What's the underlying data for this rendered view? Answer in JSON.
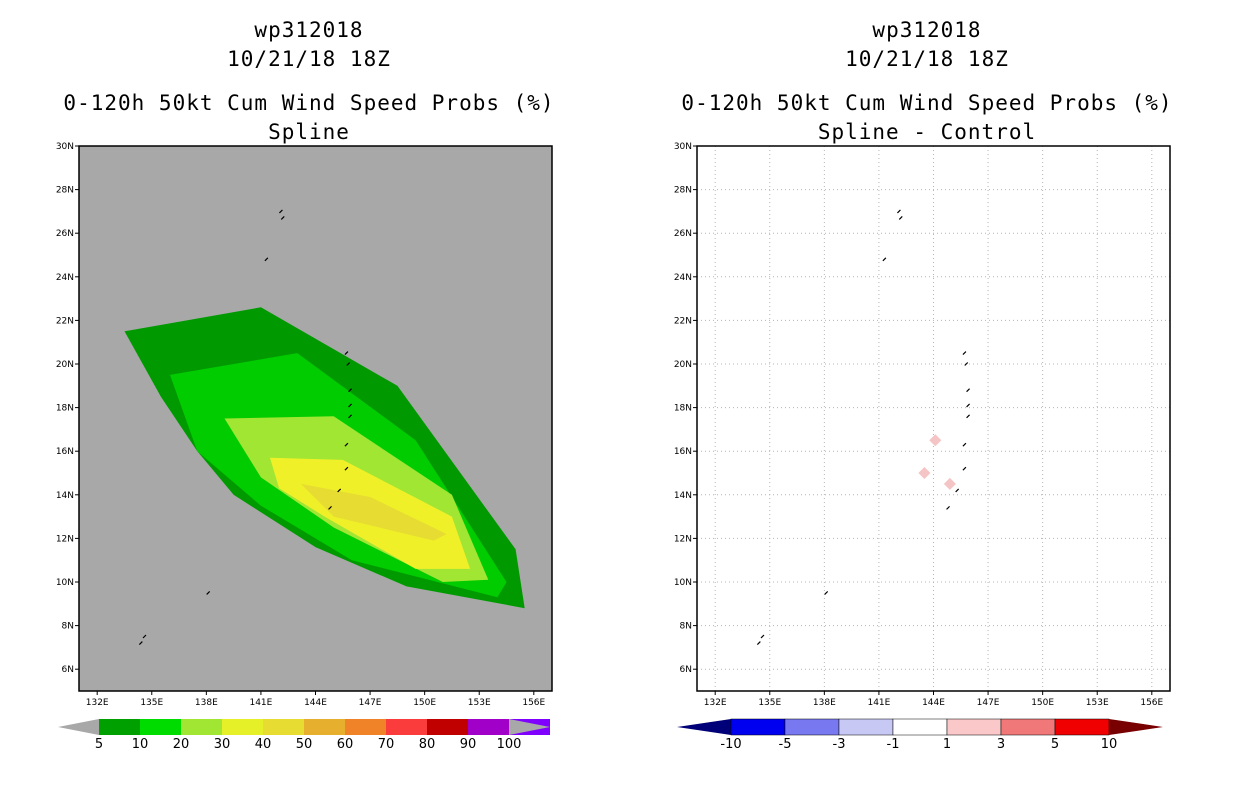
{
  "chart_data": [
    {
      "type": "heatmap",
      "storm_id": "wp312018",
      "datetime": "10/21/18 18Z",
      "title": "0-120h 50kt Cum Wind Speed Probs (%)",
      "subtitle": "Spline",
      "x_ticks": [
        "132E",
        "135E",
        "138E",
        "141E",
        "144E",
        "147E",
        "150E",
        "153E",
        "156E"
      ],
      "y_ticks": [
        "6N",
        "8N",
        "10N",
        "12N",
        "14N",
        "16N",
        "18N",
        "20N",
        "22N",
        "24N",
        "26N",
        "28N",
        "30N"
      ],
      "xlim": [
        131,
        157
      ],
      "ylim": [
        5,
        30
      ],
      "colorbar": {
        "labels": [
          "5",
          "10",
          "20",
          "30",
          "40",
          "50",
          "60",
          "70",
          "80",
          "90",
          "100"
        ],
        "colors": [
          "#00a000",
          "#00dc00",
          "#a0e632",
          "#e6f028",
          "#e6dc32",
          "#e6af2d",
          "#f08228",
          "#fa3c3c",
          "#c00000",
          "#a000c8",
          "#8000ff"
        ]
      },
      "background_color": "#a8a8a8",
      "contours": [
        {
          "level": 5,
          "color": "#009a00",
          "lon": [
            133.5,
            141.0,
            148.5,
            155.0,
            155.5,
            149.0,
            144.0,
            139.5,
            137.5,
            135.5,
            133.5
          ],
          "lat": [
            21.5,
            22.6,
            19.0,
            11.5,
            8.8,
            9.8,
            11.6,
            14.0,
            16.0,
            18.5,
            21.5
          ]
        },
        {
          "level": 10,
          "color": "#00cc00",
          "lon": [
            136.0,
            143.0,
            149.5,
            154.5,
            154.0,
            146.0,
            141.0,
            137.5,
            136.0
          ],
          "lat": [
            19.5,
            20.5,
            16.5,
            10.0,
            9.3,
            11.0,
            13.5,
            16.0,
            19.5
          ]
        },
        {
          "level": 20,
          "color": "#a0e632",
          "lon": [
            139.0,
            145.0,
            151.5,
            153.5,
            151.0,
            145.0,
            141.0,
            139.0
          ],
          "lat": [
            17.5,
            17.6,
            14.0,
            10.1,
            10.0,
            12.5,
            14.8,
            17.5
          ]
        },
        {
          "level": 30,
          "color": "#f0f028",
          "lon": [
            141.5,
            145.5,
            151.5,
            152.5,
            149.5,
            144.5,
            142.0,
            141.5
          ],
          "lat": [
            15.7,
            15.6,
            13.0,
            10.6,
            10.6,
            13.0,
            14.3,
            15.7
          ]
        },
        {
          "level": 40,
          "color": "#e6dc32",
          "lon": [
            143.2,
            147.0,
            151.2,
            150.5,
            145.0,
            143.2
          ],
          "lat": [
            14.5,
            13.9,
            12.2,
            11.9,
            13.0,
            14.5
          ]
        }
      ]
    },
    {
      "type": "heatmap",
      "storm_id": "wp312018",
      "datetime": "10/21/18 18Z",
      "title": "0-120h 50kt Cum Wind Speed Probs (%)",
      "subtitle": "Spline - Control",
      "x_ticks": [
        "132E",
        "135E",
        "138E",
        "141E",
        "144E",
        "147E",
        "150E",
        "153E",
        "156E"
      ],
      "y_ticks": [
        "6N",
        "8N",
        "10N",
        "12N",
        "14N",
        "16N",
        "18N",
        "20N",
        "22N",
        "24N",
        "26N",
        "28N",
        "30N"
      ],
      "xlim": [
        131,
        157
      ],
      "ylim": [
        5,
        30
      ],
      "grid": true,
      "colorbar": {
        "labels": [
          "-10",
          "-5",
          "-3",
          "-1",
          "1",
          "3",
          "5",
          "10"
        ],
        "colors": [
          "#000078",
          "#0000f0",
          "#7878f0",
          "#c8c8f5",
          "#ffffff",
          "#fac8c8",
          "#f07878",
          "#f00000",
          "#780000"
        ]
      },
      "background_color": "#ffffff",
      "anomalies": [
        {
          "lon": 143.5,
          "lat": 15.0,
          "color": "#f5c4c4"
        },
        {
          "lon": 144.9,
          "lat": 14.5,
          "color": "#f5c4c4"
        },
        {
          "lon": 144.1,
          "lat": 16.5,
          "color": "#f5c4c4"
        }
      ]
    }
  ],
  "islands": [
    {
      "lon": 142.1,
      "lat": 27.0
    },
    {
      "lon": 142.2,
      "lat": 26.7
    },
    {
      "lon": 141.3,
      "lat": 24.8
    },
    {
      "lon": 145.7,
      "lat": 20.5
    },
    {
      "lon": 145.8,
      "lat": 20.0
    },
    {
      "lon": 145.9,
      "lat": 18.8
    },
    {
      "lon": 145.9,
      "lat": 18.1
    },
    {
      "lon": 145.9,
      "lat": 17.6
    },
    {
      "lon": 145.7,
      "lat": 16.3
    },
    {
      "lon": 145.7,
      "lat": 15.2
    },
    {
      "lon": 145.3,
      "lat": 14.2
    },
    {
      "lon": 144.8,
      "lat": 13.4
    },
    {
      "lon": 138.1,
      "lat": 9.5
    },
    {
      "lon": 134.6,
      "lat": 7.5
    },
    {
      "lon": 134.4,
      "lat": 7.2
    }
  ]
}
